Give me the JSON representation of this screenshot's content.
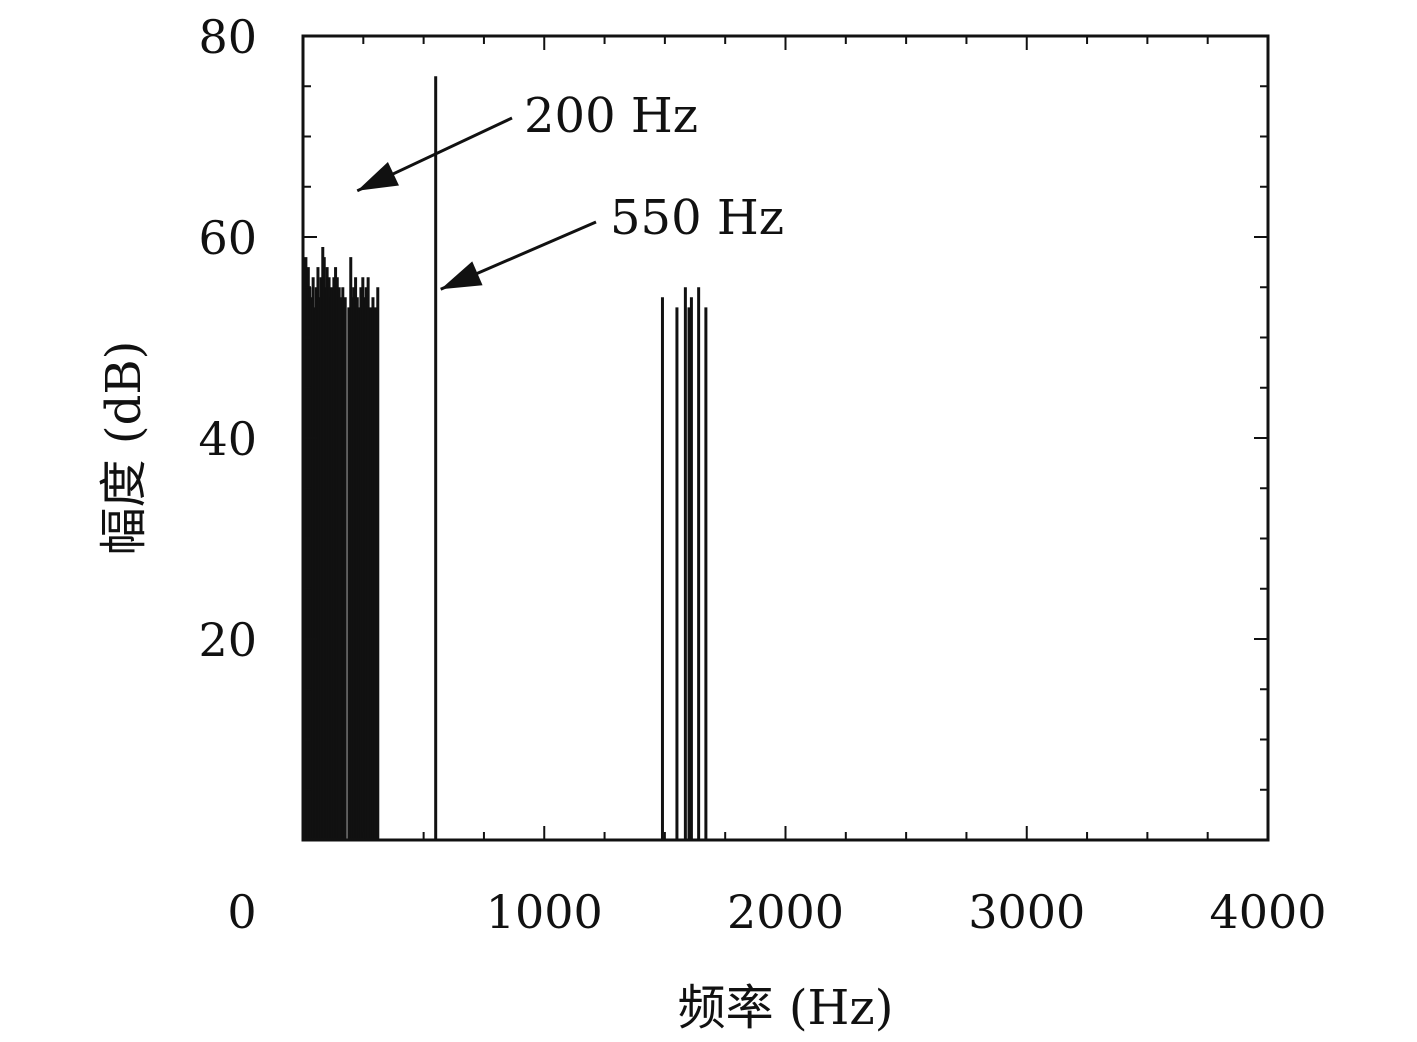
{
  "chart_data": {
    "type": "bar",
    "title": "",
    "xlabel": "频率 (Hz)",
    "ylabel": "幅度 (dB)",
    "xlim": [
      0,
      4000
    ],
    "ylim": [
      0,
      80
    ],
    "xticks": [
      0,
      1000,
      2000,
      3000,
      4000
    ],
    "yticks": [
      20,
      40,
      60,
      80
    ],
    "grid": false,
    "bar_color": "#111111",
    "series": [
      {
        "x": [
          5,
          12,
          18,
          22,
          28,
          35,
          42,
          48,
          55,
          62,
          68,
          75,
          82,
          88,
          95,
          100,
          108,
          115,
          120,
          128,
          135,
          142,
          150,
          158,
          165,
          170,
          175,
          190,
          198,
          203,
          210,
          218,
          225,
          232,
          240,
          248,
          255,
          262,
          270,
          280,
          290,
          300,
          310,
          550,
          1490,
          1550,
          1585,
          1600,
          1610,
          1640,
          1670
        ],
        "values": [
          55,
          58,
          53,
          57,
          55,
          54,
          56,
          53,
          55,
          57,
          54,
          56,
          59,
          58,
          55,
          57,
          56,
          54,
          55,
          56,
          57,
          56,
          55,
          54,
          55,
          53,
          54,
          53,
          58,
          54,
          55,
          56,
          54,
          53,
          55,
          56,
          54,
          55,
          56,
          53,
          54,
          53,
          55,
          76,
          54,
          53,
          55,
          53,
          54,
          55,
          53
        ]
      }
    ],
    "annotations": [
      {
        "text": "200 Hz",
        "x": 200,
        "y": 64
      },
      {
        "text": "550 Hz",
        "x": 550,
        "y": 55
      }
    ]
  }
}
